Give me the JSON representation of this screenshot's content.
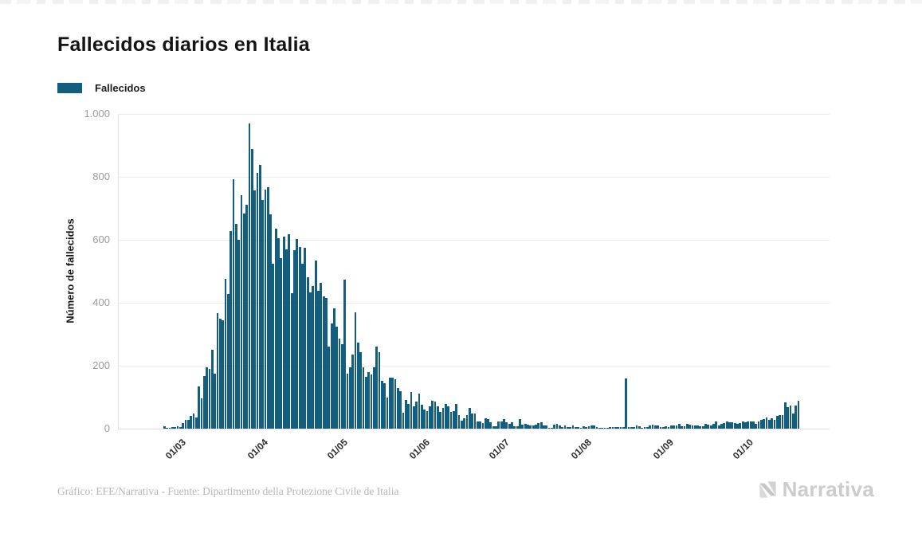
{
  "page": {
    "title": "Fallecidos diarios en Italia",
    "footer_credit": "Gráfico: EFE/Narrativa - Fuente: Dipartimento della Protezione Civile de Italia",
    "brand_name": "Narrativa"
  },
  "legend": {
    "label": "Fallecidos",
    "color": "#135E7F"
  },
  "chart_data": {
    "type": "bar",
    "title": "Fallecidos diarios en Italia",
    "series_name": "Fallecidos",
    "xlabel": "",
    "ylabel": "Número de fallecidos",
    "ylim": [
      0,
      1000
    ],
    "grid": "horizontal",
    "legend_position": "top-left",
    "bar_color": "#135E7F",
    "y_ticks": [
      {
        "label": "1.000",
        "value": 1000
      },
      {
        "label": "800",
        "value": 800
      },
      {
        "label": "600",
        "value": 600
      },
      {
        "label": "400",
        "value": 400
      },
      {
        "label": "200",
        "value": 200
      },
      {
        "label": "0",
        "value": 0
      }
    ],
    "x_ticks": [
      {
        "label": "01/03",
        "day_index": 6
      },
      {
        "label": "01/04",
        "day_index": 37
      },
      {
        "label": "01/05",
        "day_index": 67
      },
      {
        "label": "01/06",
        "day_index": 98
      },
      {
        "label": "01/07",
        "day_index": 128
      },
      {
        "label": "01/08",
        "day_index": 159
      },
      {
        "label": "01/09",
        "day_index": 190
      },
      {
        "label": "01/10",
        "day_index": 220
      }
    ],
    "x_unit": "day (daily bars, late Feb to late Oct)",
    "values": [
      7,
      3,
      2,
      5,
      4,
      8,
      5,
      18,
      27,
      28,
      41,
      49,
      36,
      133,
      97,
      168,
      196,
      189,
      250,
      175,
      368,
      349,
      345,
      475,
      427,
      627,
      793,
      651,
      601,
      743,
      683,
      712,
      969,
      889,
      756,
      812,
      837,
      727,
      760,
      766,
      681,
      525,
      636,
      604,
      542,
      610,
      570,
      619,
      431,
      566,
      602,
      578,
      525,
      575,
      482,
      433,
      454,
      534,
      437,
      464,
      420,
      415,
      260,
      333,
      382,
      323,
      285,
      269,
      474,
      174,
      195,
      236,
      369,
      274,
      243,
      194,
      165,
      179,
      172,
      195,
      262,
      242,
      153,
      145,
      99,
      162,
      161,
      156,
      130,
      119,
      50,
      92,
      78,
      117,
      70,
      87,
      111,
      75,
      60,
      55,
      71,
      88,
      85,
      72,
      53,
      65,
      79,
      71,
      53,
      56,
      78,
      44,
      26,
      34,
      43,
      66,
      47,
      49,
      24,
      23,
      18,
      33,
      30,
      20,
      8,
      8,
      23,
      23,
      30,
      20,
      15,
      21,
      8,
      8,
      30,
      12,
      15,
      12,
      9,
      9,
      13,
      17,
      20,
      11,
      10,
      3,
      3,
      13,
      15,
      10,
      6,
      10,
      5,
      5,
      11,
      5,
      6,
      3,
      8,
      5,
      8,
      9,
      10,
      6,
      2,
      3,
      2,
      3,
      4,
      6,
      6,
      5,
      4,
      4,
      160,
      4,
      5,
      6,
      9,
      7,
      3,
      4,
      4,
      10,
      13,
      9,
      9,
      4,
      6,
      8,
      6,
      10,
      10,
      9,
      16,
      8,
      8,
      14,
      13,
      10,
      10,
      9,
      7,
      8,
      14,
      12,
      10,
      14,
      24,
      11,
      14,
      17,
      23,
      21,
      20,
      17,
      16,
      19,
      23,
      20,
      23,
      24,
      23,
      16,
      22,
      28,
      31,
      36,
      28,
      34,
      29,
      41,
      43,
      43,
      83,
      69,
      73,
      47,
      73,
      89
    ]
  }
}
